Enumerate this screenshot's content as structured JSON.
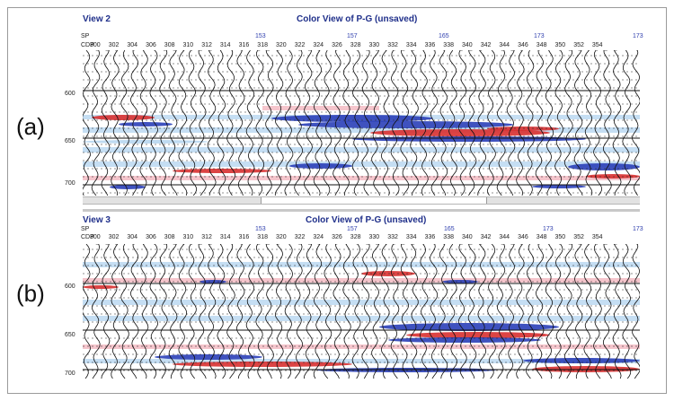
{
  "panels": [
    {
      "id": "a",
      "label": "(a)",
      "view_title": "View 2",
      "color_title": "Color View of P-G (unsaved)",
      "sp_tag": "SP",
      "cdp_tag": "CDP",
      "sp_labels": [
        "153",
        "157",
        "165",
        "173",
        "173"
      ],
      "cdp_labels": [
        "300",
        "302",
        "304",
        "306",
        "308",
        "310",
        "312",
        "314",
        "316",
        "318",
        "320",
        "322",
        "324",
        "326",
        "328",
        "330",
        "332",
        "334",
        "336",
        "338",
        "340",
        "342",
        "344",
        "346",
        "348",
        "350",
        "352",
        "354"
      ],
      "time_labels": [
        "600",
        "650",
        "700"
      ]
    },
    {
      "id": "b",
      "label": "(b)",
      "view_title": "View 3",
      "color_title": "Color View of P-G (unsaved)",
      "sp_tag": "SP",
      "cdp_tag": "CDP",
      "sp_labels": [
        "153",
        "157",
        "165",
        "173",
        "173"
      ],
      "cdp_labels": [
        "300",
        "302",
        "304",
        "306",
        "308",
        "310",
        "312",
        "314",
        "316",
        "318",
        "320",
        "322",
        "324",
        "326",
        "328",
        "330",
        "332",
        "334",
        "336",
        "338",
        "340",
        "342",
        "344",
        "346",
        "348",
        "350",
        "352",
        "354"
      ],
      "time_labels": [
        "600",
        "650",
        "700"
      ]
    }
  ],
  "colors": {
    "positive_amplitude": "#d83030",
    "negative_amplitude": "#2a3fb8",
    "light_positive": "#f3b7bf",
    "light_negative": "#b7d6f0",
    "trace_line": "#111111",
    "title_blue": "#1f2f8a"
  }
}
